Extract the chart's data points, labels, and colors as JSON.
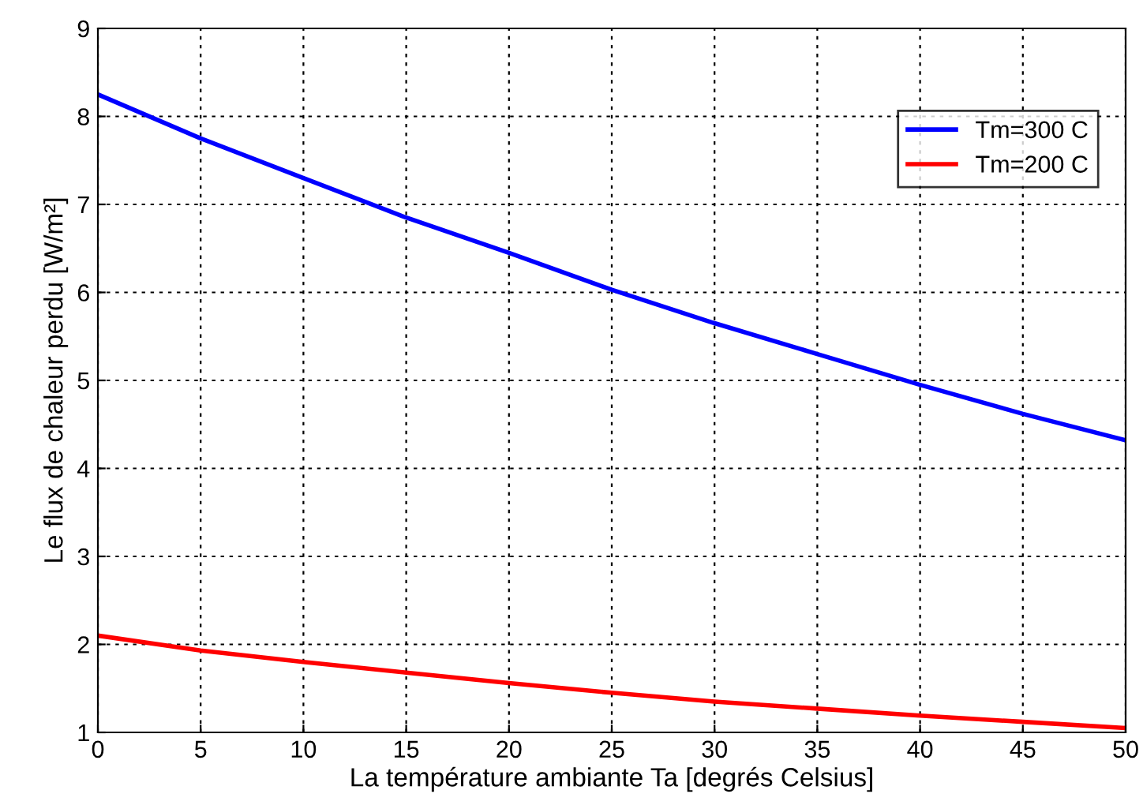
{
  "chart_data": {
    "type": "line",
    "xlabel": "La température ambiante Ta [degrés Celsius]",
    "ylabel": "Le flux de chaleur perdu [W/m²]",
    "x": [
      0,
      5,
      10,
      15,
      20,
      25,
      30,
      35,
      40,
      45,
      50
    ],
    "series": [
      {
        "name": "Tm=300 C",
        "color": "#0000ff",
        "values": [
          8.25,
          7.75,
          7.3,
          6.85,
          6.45,
          6.03,
          5.65,
          5.3,
          4.95,
          4.62,
          4.32
        ]
      },
      {
        "name": "Tm=200 C",
        "color": "#ff0000",
        "values": [
          2.1,
          1.93,
          1.8,
          1.68,
          1.56,
          1.45,
          1.35,
          1.27,
          1.19,
          1.12,
          1.05
        ]
      }
    ],
    "xlim": [
      0,
      50
    ],
    "xticks": [
      0,
      5,
      10,
      15,
      20,
      25,
      30,
      35,
      40,
      45,
      50
    ],
    "ylim": [
      1,
      9
    ],
    "yticks": [
      1,
      2,
      3,
      4,
      5,
      6,
      7,
      8,
      9
    ],
    "grid": true,
    "legend": "top right",
    "marker": "none",
    "line_style": "solid"
  }
}
